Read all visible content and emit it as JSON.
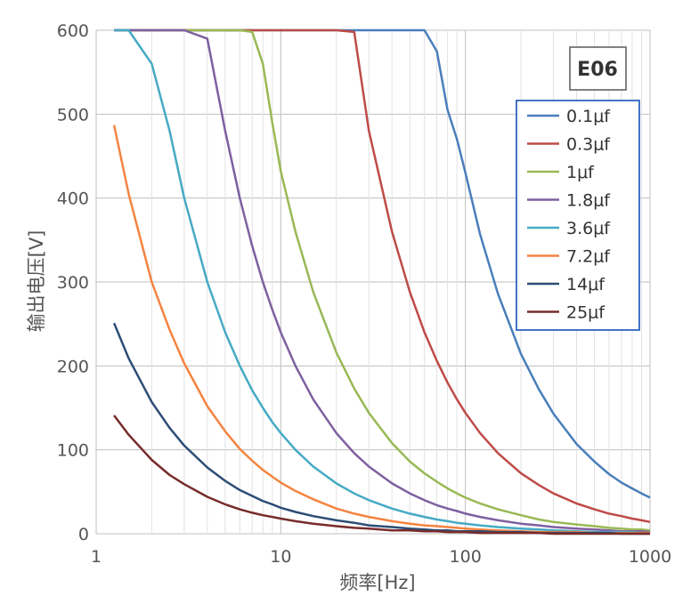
{
  "chart_data": {
    "type": "line",
    "title": "",
    "badge": "E06",
    "xlabel": "频率[Hz]",
    "ylabel": "输出电压[V]",
    "xscale": "log",
    "xlim": [
      1,
      1000
    ],
    "ylim": [
      0,
      600
    ],
    "x_ticks": [
      "1",
      "10",
      "100",
      "1000"
    ],
    "y_ticks": [
      "0",
      "100",
      "200",
      "300",
      "400",
      "500",
      "600"
    ],
    "grid": true,
    "legend_position": "top-right",
    "x": [
      1.25,
      1.5,
      2,
      2.5,
      3,
      4,
      5,
      6,
      7,
      8,
      9,
      10,
      12,
      15,
      20,
      25,
      30,
      40,
      50,
      60,
      70,
      80,
      90,
      100,
      120,
      150,
      200,
      250,
      300,
      400,
      500,
      600,
      700,
      800,
      900,
      1000
    ],
    "series": [
      {
        "name": "0.1μf",
        "color": "#4a7ebb",
        "values": [
          600,
          600,
          600,
          600,
          600,
          600,
          600,
          600,
          600,
          600,
          600,
          600,
          600,
          600,
          600,
          600,
          600,
          600,
          600,
          600,
          575,
          505,
          470,
          430,
          357,
          286,
          214,
          172,
          143,
          107,
          86,
          71,
          61,
          54,
          48,
          43
        ]
      },
      {
        "name": "0.3μf",
        "color": "#be4b48",
        "values": [
          600,
          600,
          600,
          600,
          600,
          600,
          600,
          600,
          600,
          600,
          600,
          600,
          600,
          600,
          600,
          598,
          480,
          360,
          288,
          240,
          206,
          180,
          160,
          144,
          120,
          96,
          72,
          58,
          48,
          36,
          29,
          24,
          21,
          18,
          16,
          14
        ]
      },
      {
        "name": "1μf",
        "color": "#98b954",
        "values": [
          600,
          600,
          600,
          600,
          600,
          600,
          600,
          600,
          598,
          560,
          490,
          432,
          360,
          288,
          216,
          173,
          144,
          108,
          86,
          72,
          62,
          54,
          48,
          43,
          36,
          29,
          22,
          17,
          14,
          11,
          9,
          7,
          6,
          5,
          5,
          4
        ]
      },
      {
        "name": "1.8μf",
        "color": "#7d60a0",
        "values": [
          600,
          600,
          600,
          600,
          600,
          590,
          480,
          400,
          343,
          300,
          267,
          240,
          200,
          160,
          120,
          96,
          80,
          60,
          48,
          40,
          34,
          30,
          27,
          24,
          20,
          16,
          12,
          10,
          8,
          6,
          5,
          4,
          3,
          3,
          3,
          2
        ]
      },
      {
        "name": "3.6μf",
        "color": "#46aac5",
        "values": [
          600,
          600,
          560,
          480,
          400,
          300,
          240,
          200,
          171,
          150,
          133,
          120,
          100,
          80,
          60,
          48,
          40,
          30,
          24,
          20,
          17,
          15,
          13,
          12,
          10,
          8,
          6,
          5,
          4,
          3,
          2,
          2,
          2,
          2,
          1,
          1
        ]
      },
      {
        "name": "7.2μf",
        "color": "#f48440",
        "values": [
          487,
          405,
          300,
          243,
          203,
          152,
          122,
          101,
          87,
          76,
          68,
          61,
          51,
          41,
          30,
          24,
          20,
          15,
          12,
          10,
          9,
          8,
          7,
          6,
          5,
          4,
          3,
          2,
          2,
          2,
          1,
          1,
          1,
          1,
          1,
          1
        ]
      },
      {
        "name": "14μf",
        "color": "#2c4d75",
        "values": [
          251,
          209,
          157,
          126,
          105,
          79,
          63,
          52,
          45,
          39,
          35,
          31,
          26,
          21,
          16,
          13,
          10,
          8,
          6,
          5,
          4,
          4,
          3,
          3,
          3,
          2,
          2,
          1,
          1,
          1,
          1,
          1,
          0,
          0,
          0,
          0
        ]
      },
      {
        "name": "25μf",
        "color": "#772c2a",
        "values": [
          141,
          118,
          88,
          70,
          59,
          44,
          35,
          29,
          25,
          22,
          20,
          18,
          15,
          12,
          9,
          7,
          6,
          4,
          4,
          3,
          3,
          2,
          2,
          2,
          1,
          1,
          1,
          1,
          0,
          0,
          0,
          0,
          0,
          0,
          0,
          0
        ]
      }
    ]
  }
}
